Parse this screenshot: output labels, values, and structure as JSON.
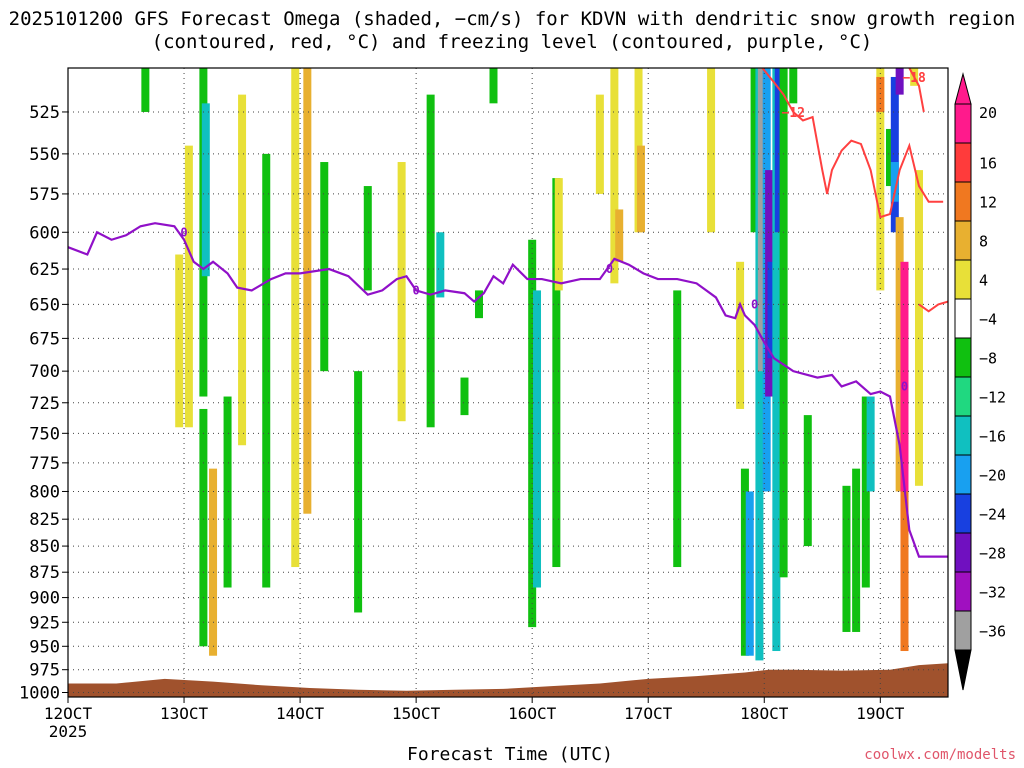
{
  "title": "2025101200 GFS Forecast Omega (shaded, −cm/s) for KDVN with dendritic snow growth region (contoured, red, °C) and freezing level (contoured, purple, °C)",
  "x_axis_title": "Forecast Time (UTC)",
  "credit": "coolwx.com/modelts",
  "chart_data": {
    "type": "heatmap",
    "x_ticks": [
      {
        "label": "12OCT",
        "sub": "2025",
        "hour": 0
      },
      {
        "label": "13OCT",
        "sub": "",
        "hour": 24
      },
      {
        "label": "14OCT",
        "sub": "",
        "hour": 48
      },
      {
        "label": "15OCT",
        "sub": "",
        "hour": 72
      },
      {
        "label": "16OCT",
        "sub": "",
        "hour": 96
      },
      {
        "label": "17OCT",
        "sub": "",
        "hour": 120
      },
      {
        "label": "18OCT",
        "sub": "",
        "hour": 144
      },
      {
        "label": "19OCT",
        "sub": "",
        "hour": 168
      }
    ],
    "xlim": [
      0,
      182
    ],
    "y_ticks": [
      525,
      550,
      575,
      600,
      625,
      650,
      675,
      700,
      725,
      750,
      775,
      800,
      825,
      850,
      875,
      900,
      925,
      950,
      975,
      1000
    ],
    "ylim": [
      1005,
      500
    ],
    "y_scale": "log",
    "colorbar": {
      "labels": [
        "20",
        "16",
        "12",
        "8",
        "4",
        "−4",
        "−8",
        "−12",
        "−16",
        "−20",
        "−24",
        "−28",
        "−32",
        "−36"
      ],
      "colors": [
        "#ff1a8c",
        "#ff3b3b",
        "#f07820",
        "#e8b030",
        "#e8e038",
        "#ffffff",
        "#10c010",
        "#20d880",
        "#10c0c0",
        "#18a0f0",
        "#1840e0",
        "#7010c0",
        "#a010c0",
        "#a0a0a0"
      ]
    },
    "omega_regions": [
      {
        "hour": 16,
        "p_top": 500,
        "p_bot": 525,
        "color": "#10c010"
      },
      {
        "hour": 23,
        "p_top": 615,
        "p_bot": 745,
        "color": "#e8e038"
      },
      {
        "hour": 25,
        "p_top": 545,
        "p_bot": 745,
        "color": "#e8e038"
      },
      {
        "hour": 28,
        "p_top": 495,
        "p_bot": 720,
        "color": "#10c010"
      },
      {
        "hour": 28.5,
        "p_top": 520,
        "p_bot": 630,
        "color": "#10c0c0"
      },
      {
        "hour": 28,
        "p_top": 730,
        "p_bot": 950,
        "color": "#10c010"
      },
      {
        "hour": 30,
        "p_top": 780,
        "p_bot": 960,
        "color": "#e8b030"
      },
      {
        "hour": 33,
        "p_top": 720,
        "p_bot": 890,
        "color": "#10c010"
      },
      {
        "hour": 36,
        "p_top": 515,
        "p_bot": 760,
        "color": "#e8e038"
      },
      {
        "hour": 41,
        "p_top": 550,
        "p_bot": 890,
        "color": "#10c010"
      },
      {
        "hour": 47,
        "p_top": 495,
        "p_bot": 870,
        "color": "#e8e038"
      },
      {
        "hour": 49.5,
        "p_top": 495,
        "p_bot": 820,
        "color": "#e8b030"
      },
      {
        "hour": 53,
        "p_top": 555,
        "p_bot": 700,
        "color": "#10c010"
      },
      {
        "hour": 60,
        "p_top": 700,
        "p_bot": 915,
        "color": "#10c010"
      },
      {
        "hour": 62,
        "p_top": 570,
        "p_bot": 640,
        "color": "#10c010"
      },
      {
        "hour": 69,
        "p_top": 555,
        "p_bot": 740,
        "color": "#e8e038"
      },
      {
        "hour": 75,
        "p_top": 515,
        "p_bot": 745,
        "color": "#10c010"
      },
      {
        "hour": 77,
        "p_top": 600,
        "p_bot": 645,
        "color": "#10c0c0"
      },
      {
        "hour": 82,
        "p_top": 705,
        "p_bot": 735,
        "color": "#10c010"
      },
      {
        "hour": 85,
        "p_top": 640,
        "p_bot": 660,
        "color": "#10c010"
      },
      {
        "hour": 88,
        "p_top": 500,
        "p_bot": 520,
        "color": "#10c010"
      },
      {
        "hour": 96,
        "p_top": 605,
        "p_bot": 930,
        "color": "#10c010"
      },
      {
        "hour": 97,
        "p_top": 640,
        "p_bot": 890,
        "color": "#10c0c0"
      },
      {
        "hour": 101,
        "p_top": 565,
        "p_bot": 870,
        "color": "#10c010"
      },
      {
        "hour": 101.5,
        "p_top": 565,
        "p_bot": 640,
        "color": "#e8e038"
      },
      {
        "hour": 110,
        "p_top": 515,
        "p_bot": 575,
        "color": "#e8e038"
      },
      {
        "hour": 113,
        "p_top": 500,
        "p_bot": 635,
        "color": "#e8e038"
      },
      {
        "hour": 114,
        "p_top": 585,
        "p_bot": 620,
        "color": "#e8b030"
      },
      {
        "hour": 118,
        "p_top": 500,
        "p_bot": 600,
        "color": "#e8e038"
      },
      {
        "hour": 118.5,
        "p_top": 545,
        "p_bot": 600,
        "color": "#e8b030"
      },
      {
        "hour": 126,
        "p_top": 640,
        "p_bot": 870,
        "color": "#10c010"
      },
      {
        "hour": 133,
        "p_top": 495,
        "p_bot": 600,
        "color": "#e8e038"
      },
      {
        "hour": 139,
        "p_top": 620,
        "p_bot": 730,
        "color": "#e8e038"
      },
      {
        "hour": 140,
        "p_top": 780,
        "p_bot": 960,
        "color": "#10c010"
      },
      {
        "hour": 141,
        "p_top": 800,
        "p_bot": 960,
        "color": "#18a0f0"
      },
      {
        "hour": 142,
        "p_top": 495,
        "p_bot": 600,
        "color": "#10c010"
      },
      {
        "hour": 143,
        "p_top": 495,
        "p_bot": 965,
        "color": "#10c0c0"
      },
      {
        "hour": 143.5,
        "p_top": 495,
        "p_bot": 700,
        "color": "#a0a0a0"
      },
      {
        "hour": 144.5,
        "p_top": 495,
        "p_bot": 800,
        "color": "#18a0f0"
      },
      {
        "hour": 145,
        "p_top": 560,
        "p_bot": 720,
        "color": "#7010c0"
      },
      {
        "hour": 145.5,
        "p_top": 620,
        "p_bot": 690,
        "color": "#1840e0"
      },
      {
        "hour": 146.5,
        "p_top": 495,
        "p_bot": 955,
        "color": "#10c0c0"
      },
      {
        "hour": 147,
        "p_top": 495,
        "p_bot": 600,
        "color": "#1840e0"
      },
      {
        "hour": 148,
        "p_top": 495,
        "p_bot": 880,
        "color": "#10c010"
      },
      {
        "hour": 150,
        "p_top": 495,
        "p_bot": 520,
        "color": "#10c010"
      },
      {
        "hour": 153,
        "p_top": 735,
        "p_bot": 850,
        "color": "#10c010"
      },
      {
        "hour": 161,
        "p_top": 795,
        "p_bot": 935,
        "color": "#10c010"
      },
      {
        "hour": 163,
        "p_top": 780,
        "p_bot": 935,
        "color": "#10c010"
      },
      {
        "hour": 165,
        "p_top": 720,
        "p_bot": 890,
        "color": "#10c010"
      },
      {
        "hour": 166,
        "p_top": 720,
        "p_bot": 800,
        "color": "#10c0c0"
      },
      {
        "hour": 168,
        "p_top": 495,
        "p_bot": 640,
        "color": "#e8e038"
      },
      {
        "hour": 168,
        "p_top": 505,
        "p_bot": 525,
        "color": "#f07820"
      },
      {
        "hour": 170,
        "p_top": 535,
        "p_bot": 570,
        "color": "#10c010"
      },
      {
        "hour": 171,
        "p_top": 505,
        "p_bot": 600,
        "color": "#1840e0"
      },
      {
        "hour": 171,
        "p_top": 555,
        "p_bot": 580,
        "color": "#18a0f0"
      },
      {
        "hour": 172,
        "p_top": 495,
        "p_bot": 515,
        "color": "#7010c0"
      },
      {
        "hour": 172,
        "p_top": 590,
        "p_bot": 800,
        "color": "#e8b030"
      },
      {
        "hour": 173,
        "p_top": 620,
        "p_bot": 900,
        "color": "#ff1a8c"
      },
      {
        "hour": 173,
        "p_top": 800,
        "p_bot": 955,
        "color": "#f07820"
      },
      {
        "hour": 175,
        "p_top": 495,
        "p_bot": 510,
        "color": "#e8e038"
      },
      {
        "hour": 176,
        "p_top": 560,
        "p_bot": 795,
        "color": "#e8e038"
      }
    ],
    "dendritic_contours": [
      {
        "label": "−12",
        "label_hour": 150,
        "label_p": 525,
        "points": [
          [
            143,
            498
          ],
          [
            146,
            508
          ],
          [
            148,
            515
          ],
          [
            150,
            525
          ],
          [
            152,
            530
          ],
          [
            154,
            528
          ],
          [
            156,
            560
          ],
          [
            157,
            575
          ],
          [
            158,
            560
          ],
          [
            160,
            548
          ],
          [
            162,
            542
          ],
          [
            164,
            544
          ],
          [
            166,
            560
          ],
          [
            168,
            590
          ],
          [
            170,
            588
          ],
          [
            172,
            560
          ],
          [
            174,
            545
          ],
          [
            176,
            570
          ],
          [
            178,
            580
          ],
          [
            181,
            580
          ]
        ]
      },
      {
        "label": "−18",
        "label_hour": 175,
        "label_p": 505,
        "points": [
          [
            174,
            500
          ],
          [
            176,
            510
          ],
          [
            177,
            525
          ]
        ]
      },
      {
        "label": "",
        "label_hour": 0,
        "label_p": 0,
        "points": [
          [
            176,
            650
          ],
          [
            178,
            655
          ],
          [
            180,
            650
          ],
          [
            182,
            648
          ]
        ]
      }
    ],
    "freezing_level": {
      "label": "0",
      "label_points": [
        [
          24,
          600
        ],
        [
          72,
          640
        ],
        [
          112,
          625
        ],
        [
          142,
          650
        ],
        [
          173,
          712
        ]
      ],
      "points": [
        [
          0,
          610
        ],
        [
          4,
          615
        ],
        [
          6,
          600
        ],
        [
          9,
          605
        ],
        [
          12,
          602
        ],
        [
          15,
          596
        ],
        [
          18,
          594
        ],
        [
          22,
          596
        ],
        [
          24,
          605
        ],
        [
          26,
          620
        ],
        [
          28,
          625
        ],
        [
          30,
          620
        ],
        [
          33,
          628
        ],
        [
          35,
          638
        ],
        [
          38,
          640
        ],
        [
          42,
          632
        ],
        [
          45,
          628
        ],
        [
          48,
          628
        ],
        [
          54,
          625
        ],
        [
          58,
          630
        ],
        [
          62,
          643
        ],
        [
          65,
          640
        ],
        [
          68,
          632
        ],
        [
          70,
          630
        ],
        [
          72,
          640
        ],
        [
          75,
          643
        ],
        [
          78,
          640
        ],
        [
          82,
          642
        ],
        [
          84,
          648
        ],
        [
          86,
          642
        ],
        [
          88,
          630
        ],
        [
          90,
          635
        ],
        [
          92,
          622
        ],
        [
          95,
          632
        ],
        [
          98,
          632
        ],
        [
          102,
          635
        ],
        [
          106,
          632
        ],
        [
          110,
          632
        ],
        [
          113,
          618
        ],
        [
          116,
          622
        ],
        [
          119,
          628
        ],
        [
          122,
          632
        ],
        [
          126,
          632
        ],
        [
          130,
          635
        ],
        [
          132,
          640
        ],
        [
          134,
          645
        ],
        [
          136,
          658
        ],
        [
          138,
          660
        ],
        [
          139,
          650
        ],
        [
          140,
          658
        ],
        [
          142,
          665
        ],
        [
          144,
          678
        ],
        [
          146,
          690
        ],
        [
          148,
          695
        ],
        [
          150,
          700
        ],
        [
          155,
          705
        ],
        [
          158,
          703
        ],
        [
          160,
          712
        ],
        [
          163,
          708
        ],
        [
          166,
          718
        ],
        [
          168,
          716
        ],
        [
          170,
          720
        ],
        [
          172,
          760
        ],
        [
          174,
          835
        ],
        [
          176,
          860
        ],
        [
          182,
          860
        ]
      ]
    },
    "terrain_color": "#a0522d",
    "terrain": [
      [
        0,
        990
      ],
      [
        10,
        990
      ],
      [
        20,
        985
      ],
      [
        30,
        988
      ],
      [
        40,
        992
      ],
      [
        50,
        995
      ],
      [
        60,
        997
      ],
      [
        70,
        998
      ],
      [
        80,
        997
      ],
      [
        90,
        996
      ],
      [
        100,
        993
      ],
      [
        110,
        990
      ],
      [
        120,
        985
      ],
      [
        130,
        982
      ],
      [
        140,
        978
      ],
      [
        145,
        975
      ],
      [
        150,
        975
      ],
      [
        160,
        976
      ],
      [
        170,
        975
      ],
      [
        176,
        970
      ],
      [
        182,
        968
      ]
    ]
  }
}
